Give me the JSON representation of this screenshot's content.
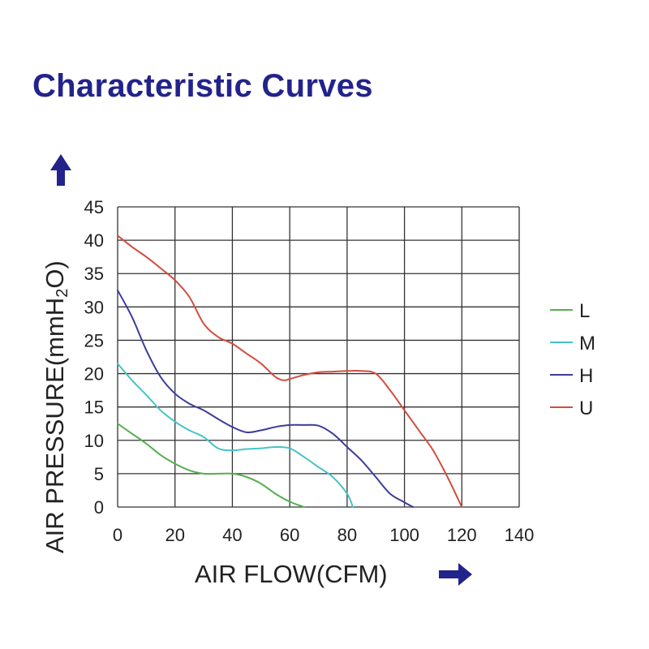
{
  "title": "Characteristic Curves",
  "chart_data": {
    "type": "line",
    "xlabel": "AIR FLOW(CFM)",
    "ylabel_pre": "AIR PRESSURE(mmH",
    "ylabel_sub": "2",
    "ylabel_post": "O)",
    "xlim": [
      0,
      140
    ],
    "ylim": [
      0,
      45
    ],
    "xticks": [
      "0",
      "20",
      "40",
      "60",
      "80",
      "100",
      "120",
      "140"
    ],
    "yticks": [
      "0",
      "5",
      "10",
      "15",
      "20",
      "25",
      "30",
      "35",
      "40",
      "45"
    ],
    "grid": true,
    "legend_position": "right",
    "series": [
      {
        "name": "L",
        "color": "#55b04e",
        "x": [
          0,
          5,
          10,
          15,
          20,
          25,
          30,
          35,
          40,
          45,
          50,
          55,
          60,
          65
        ],
        "y": [
          12.5,
          11,
          9.5,
          7.8,
          6.5,
          5.5,
          5,
          5,
          5,
          4.5,
          3.5,
          2,
          0.8,
          0
        ]
      },
      {
        "name": "M",
        "color": "#45c3c9",
        "x": [
          0,
          5,
          10,
          15,
          20,
          25,
          30,
          35,
          40,
          45,
          50,
          55,
          60,
          65,
          70,
          75,
          80,
          82
        ],
        "y": [
          21.5,
          19,
          16.8,
          14.5,
          12.8,
          11.5,
          10.5,
          8.8,
          8.5,
          8.7,
          8.8,
          9,
          8.8,
          7.5,
          6,
          4.5,
          2,
          0
        ]
      },
      {
        "name": "H",
        "color": "#3d3c9c",
        "x": [
          0,
          5,
          10,
          15,
          20,
          25,
          30,
          35,
          40,
          45,
          50,
          55,
          60,
          65,
          70,
          75,
          80,
          85,
          90,
          95,
          100,
          103
        ],
        "y": [
          32.5,
          28.5,
          23.5,
          19.5,
          17,
          15.5,
          14.5,
          13.2,
          12,
          11.2,
          11.5,
          12,
          12.3,
          12.3,
          12.2,
          11,
          9,
          7,
          4.5,
          2,
          0.7,
          0
        ]
      },
      {
        "name": "U",
        "color": "#d14d40",
        "x": [
          0,
          5,
          10,
          15,
          20,
          25,
          30,
          35,
          40,
          45,
          50,
          55,
          58,
          60,
          65,
          70,
          75,
          80,
          85,
          90,
          95,
          100,
          105,
          110,
          115,
          120
        ],
        "y": [
          40.7,
          39,
          37.5,
          35.8,
          34,
          31.5,
          27.5,
          25.5,
          24.5,
          23,
          21.5,
          19.5,
          19,
          19.2,
          19.8,
          20.2,
          20.3,
          20.4,
          20.4,
          20,
          17.5,
          14.5,
          11.5,
          8.5,
          4.5,
          0
        ]
      }
    ]
  },
  "icons": {
    "up_arrow": "arrow-up-icon",
    "right_arrow": "arrow-right-icon",
    "arrow_color": "#23238c"
  }
}
